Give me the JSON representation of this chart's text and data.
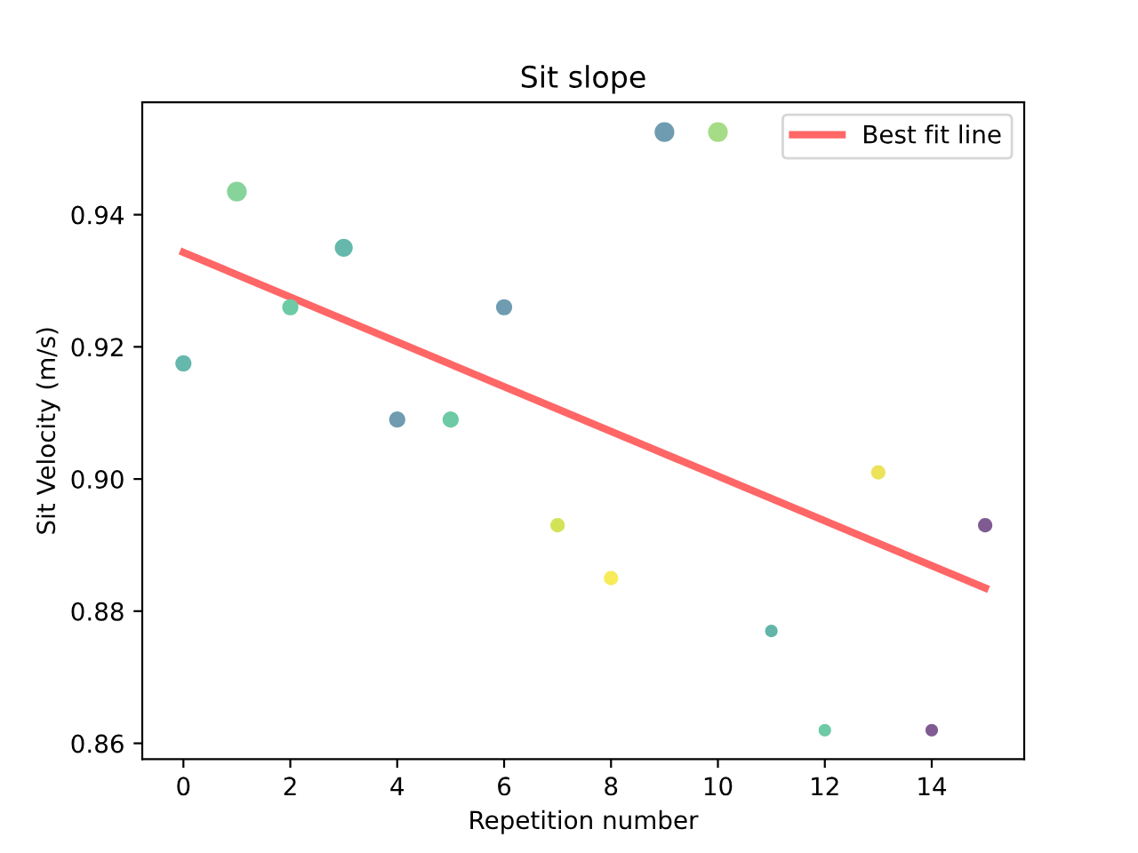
{
  "chart_data": {
    "type": "bubble",
    "title": "Sit slope",
    "xlabel": "Repetition number",
    "ylabel": "Sit Velocity (m/s)",
    "xlim": [
      -0.77,
      15.73
    ],
    "ylim": [
      0.8576,
      0.957
    ],
    "xticks": [
      0,
      2,
      4,
      6,
      8,
      10,
      12,
      14
    ],
    "yticks": [
      0.86,
      0.88,
      {
        "value": 0.9,
        "label": "0.90"
      },
      0.92,
      0.94
    ],
    "grid": false,
    "legend": "top right",
    "series": [
      {
        "x": [
          0,
          1,
          2,
          3,
          4,
          5,
          6,
          7,
          8,
          9,
          10,
          11,
          12,
          13,
          14,
          15
        ],
        "values": [
          0.9175,
          0.9435,
          0.926,
          0.935,
          0.909,
          0.909,
          0.926,
          0.893,
          0.885,
          0.9525,
          0.9525,
          0.877,
          0.862,
          0.901,
          0.862,
          0.893
        ],
        "sizes": [
          0.67,
          1,
          0.67,
          0.83,
          0.67,
          0.67,
          0.67,
          0.53,
          0.53,
          1,
          1,
          0.4,
          0.4,
          0.53,
          0.4,
          0.53
        ],
        "colors": [
          "#66b8ad",
          "#86d49a",
          "#6ccaa5",
          "#66b8ad",
          "#6f9cb0",
          "#6ccaa5",
          "#6f9cb0",
          "#d3e356",
          "#f7eb5a",
          "#6f9cb0",
          "#a5dc85",
          "#62b5a8",
          "#6ccaa5",
          "#ece35a",
          "#7f5b91",
          "#7f5b91"
        ]
      },
      {
        "type": "line",
        "name": "Best fit line",
        "color": "#ff6666",
        "x": [
          0,
          15
        ],
        "values": [
          0.9343,
          0.8835
        ]
      }
    ]
  }
}
